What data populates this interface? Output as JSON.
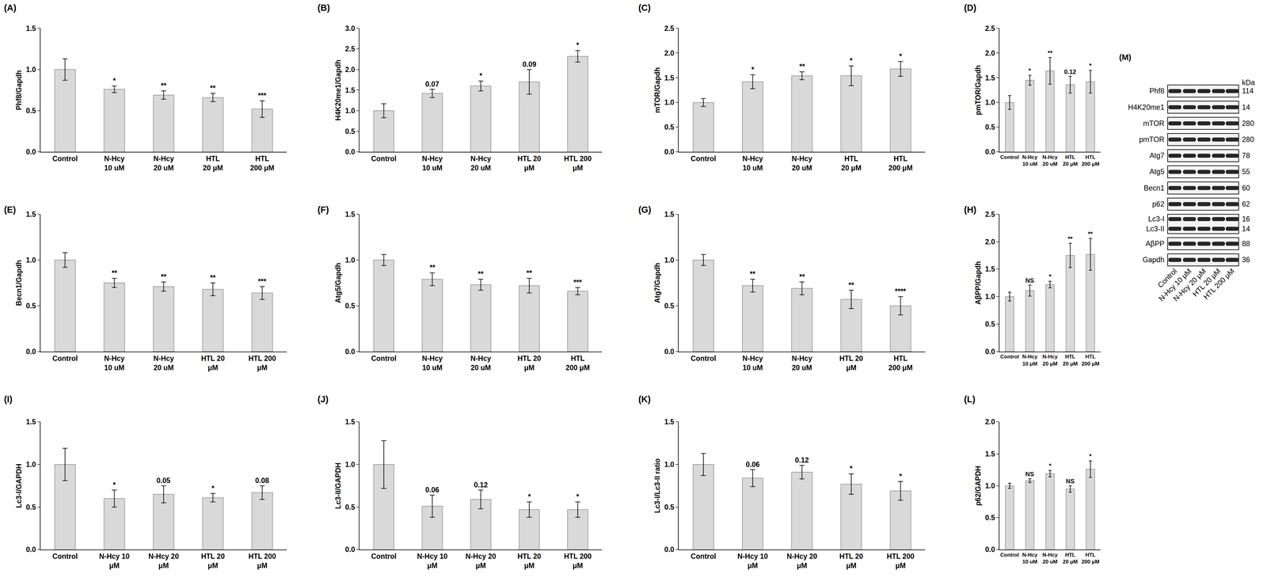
{
  "chart_data": [
    {
      "type": "bar",
      "panel": "(A)",
      "y_label": "Phf8/Gapdh",
      "categories": [
        "Control",
        "N-Hcy\n10 uM",
        "N-Hcy\n20 uM",
        "HTL\n20 μM",
        "HTL\n200 μM"
      ],
      "values": [
        1.0,
        0.76,
        0.69,
        0.66,
        0.52
      ],
      "errors": [
        0.13,
        0.04,
        0.05,
        0.05,
        0.1
      ],
      "significance": [
        null,
        "*",
        "**",
        "**",
        "***"
      ],
      "color": "#d9d9d9",
      "ylim": [
        0,
        1.5
      ],
      "yticks": [
        {
          "value": 0,
          "label": "0.0"
        },
        0.5,
        {
          "value": 1,
          "label": "1.0"
        },
        1.5
      ]
    },
    {
      "type": "bar",
      "panel": "(B)",
      "y_label": "H4K20me1/Gapdh",
      "categories": [
        "Control",
        "N-Hcy\n10 uM",
        "N-Hcy\n20 uM",
        "HTL 20\nμM",
        "HTL 200\nμM"
      ],
      "values": [
        1.0,
        1.42,
        1.6,
        1.7,
        2.32
      ],
      "errors": [
        0.17,
        0.1,
        0.12,
        0.3,
        0.14
      ],
      "significance": [
        null,
        "0.07",
        "*",
        "0.09",
        "*"
      ],
      "color": "#d9d9d9",
      "ylim": [
        0,
        3
      ],
      "yticks": [
        {
          "value": 0,
          "label": "0.0"
        },
        0.5,
        {
          "value": 1,
          "label": "1.0"
        },
        1.5,
        {
          "value": 2,
          "label": "2.0"
        },
        2.5,
        {
          "value": 3,
          "label": "3.0"
        }
      ]
    },
    {
      "type": "bar",
      "panel": "(C)",
      "y_label": "mTOR/Gapdh",
      "categories": [
        "Control",
        "N-Hcy\n10 uM",
        "N-Hcy\n20 uM",
        "HTL\n20 μM",
        "HTL\n200 μM"
      ],
      "values": [
        1.0,
        1.42,
        1.54,
        1.54,
        1.68
      ],
      "errors": [
        0.08,
        0.14,
        0.08,
        0.2,
        0.15
      ],
      "significance": [
        null,
        "*",
        "**",
        "*",
        "*"
      ],
      "color": "#d9d9d9",
      "ylim": [
        0,
        2.5
      ],
      "yticks": [
        {
          "value": 0,
          "label": "0.0"
        },
        0.5,
        {
          "value": 1,
          "label": "1.0"
        },
        1.5,
        {
          "value": 2,
          "label": "2.0"
        },
        2.5
      ]
    },
    {
      "type": "bar",
      "panel": "(D)",
      "y_label": "pmTOR/Gapdh",
      "categories": [
        "Control",
        "N-Hcy\n10 uM",
        "N-Hcy\n20 uM",
        "HTL\n20 μM",
        "HTL\n200 μM"
      ],
      "values": [
        1.0,
        1.45,
        1.64,
        1.36,
        1.42
      ],
      "errors": [
        0.14,
        0.1,
        0.27,
        0.17,
        0.23
      ],
      "significance": [
        null,
        "*",
        "**",
        "0.12",
        "*"
      ],
      "color": "#d9d9d9",
      "ylim": [
        0,
        2.5
      ],
      "yticks": [
        {
          "value": 0,
          "label": "0.0"
        },
        0.5,
        {
          "value": 1,
          "label": "1.0"
        },
        1.5,
        {
          "value": 2,
          "label": "2.0"
        },
        2.5
      ]
    },
    {
      "type": "bar",
      "panel": "(E)",
      "y_label": "Becn1/Gapdh",
      "categories": [
        "Control",
        "N-Hcy\n10 uM",
        "N-Hcy\n20 uM",
        "HTL 20\nμM",
        "HTL 200\nμM"
      ],
      "values": [
        1.0,
        0.75,
        0.71,
        0.68,
        0.64
      ],
      "errors": [
        0.08,
        0.05,
        0.05,
        0.07,
        0.07
      ],
      "significance": [
        null,
        "**",
        "**",
        "**",
        "***"
      ],
      "color": "#d9d9d9",
      "ylim": [
        0,
        1.5
      ],
      "yticks": [
        {
          "value": 0,
          "label": "0.0"
        },
        0.5,
        {
          "value": 1,
          "label": "1.0"
        },
        1.5
      ]
    },
    {
      "type": "bar",
      "panel": "(F)",
      "y_label": "Atg5/Gapdh",
      "categories": [
        "Control",
        "N-Hcy\n10 uM",
        "N-Hcy\n20 uM",
        "HTL 20\nμM",
        "HTL\n200 μM"
      ],
      "values": [
        1.0,
        0.79,
        0.73,
        0.72,
        0.66
      ],
      "errors": [
        0.06,
        0.07,
        0.06,
        0.08,
        0.04
      ],
      "significance": [
        null,
        "**",
        "**",
        "**",
        "***"
      ],
      "color": "#d9d9d9",
      "ylim": [
        0,
        1.5
      ],
      "yticks": [
        {
          "value": 0,
          "label": "0.0"
        },
        0.5,
        {
          "value": 1,
          "label": "1.0"
        },
        1.5
      ]
    },
    {
      "type": "bar",
      "panel": "(G)",
      "y_label": "Atg7/Gapdh",
      "categories": [
        "Control",
        "N-Hcy\n10 uM",
        "N-Hcy\n20 uM",
        "HTL 20\nμM",
        "HTL\n200 μM"
      ],
      "values": [
        1.0,
        0.72,
        0.69,
        0.57,
        0.5
      ],
      "errors": [
        0.06,
        0.07,
        0.07,
        0.1,
        0.1
      ],
      "significance": [
        null,
        "**",
        "**",
        "**",
        "****"
      ],
      "color": "#d9d9d9",
      "ylim": [
        0,
        1.5
      ],
      "yticks": [
        {
          "value": 0,
          "label": "0.0"
        },
        0.5,
        {
          "value": 1,
          "label": "1.0"
        },
        1.5
      ]
    },
    {
      "type": "bar",
      "panel": "(H)",
      "y_label": "AβPP/Gapdh",
      "categories": [
        "Control",
        "N-Hcy\n10 μM",
        "N-Hcy\n20 μM",
        "HTL\n20 μM",
        "HTL\n200 μM"
      ],
      "values": [
        1.0,
        1.11,
        1.22,
        1.75,
        1.77
      ],
      "errors": [
        0.08,
        0.1,
        0.06,
        0.22,
        0.29
      ],
      "significance": [
        null,
        "NS",
        "*",
        "**",
        "**"
      ],
      "color": "#d9d9d9",
      "ylim": [
        0,
        2.5
      ],
      "yticks": [
        {
          "value": 0,
          "label": "0.0"
        },
        0.5,
        {
          "value": 1,
          "label": "1.0"
        },
        1.5,
        {
          "value": 2,
          "label": "2.0"
        },
        2.5
      ]
    },
    {
      "type": "bar",
      "panel": "(I)",
      "y_label": "Lc3-I/GAPDH",
      "categories": [
        "Control",
        "N-Hcy 10\nμM",
        "N-Hcy 20\nμM",
        "HTL 20\nμM",
        "HTL 200\nμM"
      ],
      "values": [
        1.0,
        0.6,
        0.65,
        0.61,
        0.67
      ],
      "errors": [
        0.19,
        0.1,
        0.1,
        0.05,
        0.08
      ],
      "significance": [
        null,
        "*",
        "0.05",
        "*",
        "0.08"
      ],
      "color": "#d9d9d9",
      "ylim": [
        0,
        1.5
      ],
      "yticks": [
        {
          "value": 0,
          "label": "0.0"
        },
        0.5,
        {
          "value": 1,
          "label": "1.0"
        },
        1.5
      ]
    },
    {
      "type": "bar",
      "panel": "(J)",
      "y_label": "Lc3-II/GAPDH",
      "categories": [
        "Control",
        "N-Hcy 10\nμM",
        "N-Hcy 20\nμM",
        "HTL 20\nμM",
        "HTL 200\nμM"
      ],
      "values": [
        1.0,
        0.51,
        0.59,
        0.47,
        0.47
      ],
      "errors": [
        0.28,
        0.13,
        0.11,
        0.09,
        0.09
      ],
      "significance": [
        null,
        "0.06",
        "0.12",
        "*",
        "*"
      ],
      "color": "#d9d9d9",
      "ylim": [
        0,
        1.5
      ],
      "yticks": [
        {
          "value": 0,
          "label": "0.0"
        },
        0.5,
        {
          "value": 1,
          "label": "1.0"
        },
        1.5
      ]
    },
    {
      "type": "bar",
      "panel": "(K)",
      "y_label": "Lc3-I/Lc3-II ratio",
      "categories": [
        "Control",
        "N-Hcy 10\nμM",
        "N-Hcy 20\nμM",
        "HTL 20\nμM",
        "HTL 200\nμM"
      ],
      "values": [
        1.0,
        0.84,
        0.91,
        0.77,
        0.69
      ],
      "errors": [
        0.13,
        0.1,
        0.08,
        0.12,
        0.11
      ],
      "significance": [
        null,
        "0.06",
        "0.12",
        "*",
        "*"
      ],
      "color": "#d9d9d9",
      "ylim": [
        0,
        1.5
      ],
      "yticks": [
        {
          "value": 0,
          "label": "0.0"
        },
        0.5,
        {
          "value": 1,
          "label": "1.0"
        },
        1.5
      ]
    },
    {
      "type": "bar",
      "panel": "(L)",
      "y_label": "p62/GAPDH",
      "categories": [
        "Control",
        "N-Hcy\n10 uM",
        "N-Hcy\n20 uM",
        "HTL\n20 μM",
        "HTL\n200 μM"
      ],
      "values": [
        1.0,
        1.08,
        1.19,
        0.95,
        1.26
      ],
      "errors": [
        0.04,
        0.03,
        0.05,
        0.05,
        0.13
      ],
      "significance": [
        null,
        "NS",
        "*",
        "NS",
        "*"
      ],
      "color": "#d9d9d9",
      "ylim": [
        0,
        2
      ],
      "yticks": [
        {
          "value": 0,
          "label": "0.0"
        },
        0.5,
        {
          "value": 1,
          "label": "1.0"
        },
        1.5,
        {
          "value": 2,
          "label": "2.0"
        }
      ]
    }
  ],
  "blot": {
    "panel": "(M)",
    "unit": "kDa",
    "rows": [
      {
        "labels": [
          "Phf8"
        ],
        "kda": [
          114
        ]
      },
      {
        "labels": [
          "H4K20me1"
        ],
        "kda": [
          14
        ]
      },
      {
        "labels": [
          "mTOR"
        ],
        "kda": [
          280
        ]
      },
      {
        "labels": [
          "pmTOR"
        ],
        "kda": [
          280
        ]
      },
      {
        "labels": [
          "Atg7"
        ],
        "kda": [
          78
        ]
      },
      {
        "labels": [
          "Atg5"
        ],
        "kda": [
          55
        ]
      },
      {
        "labels": [
          "Becn1"
        ],
        "kda": [
          60
        ]
      },
      {
        "labels": [
          "p62"
        ],
        "kda": [
          62
        ]
      },
      {
        "labels": [
          "Lc3-I",
          "Lc3-II"
        ],
        "kda": [
          16,
          14
        ]
      },
      {
        "labels": [
          "AβPP"
        ],
        "kda": [
          88
        ]
      },
      {
        "labels": [
          "Gapdh"
        ],
        "kda": [
          36
        ]
      }
    ],
    "lanes": [
      "Control",
      "N-Hcy 10 μM",
      "N-Hcy 20 μM",
      "HTL 20 μM",
      "HTL 200 μM"
    ]
  }
}
